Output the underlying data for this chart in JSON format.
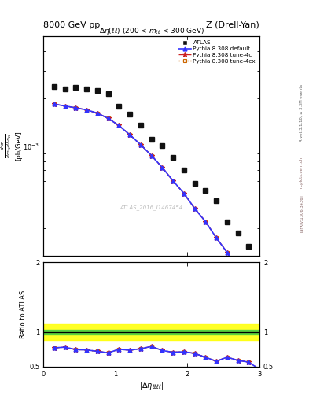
{
  "title_left": "8000 GeV pp",
  "title_right": "Z (Drell-Yan)",
  "subplot_title": "Δη(ℓℓ) (200 < m_{ℓℓ} < 300 GeV)",
  "watermark": "ATLAS_2016_I1467454",
  "rivet_text": "Rivet 3.1.10, ≥ 3.3M events",
  "arxiv_text": "[arXiv:1306.3436]",
  "mcplots_text": "mcplots.cern.ch",
  "atlas_x": [
    0.15,
    0.3,
    0.45,
    0.6,
    0.75,
    0.9,
    1.05,
    1.2,
    1.35,
    1.5,
    1.65,
    1.8,
    1.95,
    2.1,
    2.25,
    2.4,
    2.55,
    2.7,
    2.85
  ],
  "atlas_y": [
    0.0024,
    0.0023,
    0.00235,
    0.0023,
    0.00225,
    0.00215,
    0.0018,
    0.0016,
    0.00135,
    0.0011,
    0.001,
    0.00085,
    0.0007,
    0.00058,
    0.00052,
    0.00045,
    0.00033,
    0.00028,
    0.00023
  ],
  "pythia_x": [
    0.15,
    0.3,
    0.45,
    0.6,
    0.75,
    0.9,
    1.05,
    1.2,
    1.35,
    1.5,
    1.65,
    1.8,
    1.95,
    2.1,
    2.25,
    2.4,
    2.55,
    2.7,
    2.85,
    3.0
  ],
  "pythia_default_y": [
    0.00185,
    0.0018,
    0.00175,
    0.0017,
    0.00162,
    0.0015,
    0.00135,
    0.00118,
    0.00102,
    0.00087,
    0.00073,
    0.0006,
    0.0005,
    0.0004,
    0.00033,
    0.00026,
    0.00021,
    0.000165,
    0.00013,
    0.000105
  ],
  "pythia_4c_y": [
    0.00185,
    0.0018,
    0.00175,
    0.0017,
    0.00162,
    0.0015,
    0.00135,
    0.00118,
    0.00102,
    0.00087,
    0.00073,
    0.0006,
    0.0005,
    0.0004,
    0.00033,
    0.00026,
    0.00021,
    0.000165,
    0.00013,
    0.000105
  ],
  "pythia_4cx_y": [
    0.00185,
    0.0018,
    0.00175,
    0.0017,
    0.00162,
    0.0015,
    0.00135,
    0.00118,
    0.00102,
    0.00087,
    0.00073,
    0.0006,
    0.0005,
    0.0004,
    0.00033,
    0.00026,
    0.00021,
    0.000165,
    0.00013,
    0.000105
  ],
  "ratio_x": [
    0.15,
    0.3,
    0.45,
    0.6,
    0.75,
    0.9,
    1.05,
    1.2,
    1.35,
    1.5,
    1.65,
    1.8,
    1.95,
    2.1,
    2.25,
    2.4,
    2.55,
    2.7,
    2.85,
    3.0
  ],
  "ratio_default_y": [
    0.77,
    0.78,
    0.745,
    0.74,
    0.72,
    0.698,
    0.75,
    0.737,
    0.757,
    0.79,
    0.732,
    0.706,
    0.714,
    0.69,
    0.635,
    0.578,
    0.636,
    0.59,
    0.565,
    0.46
  ],
  "ratio_4c_y": [
    0.77,
    0.78,
    0.745,
    0.74,
    0.72,
    0.698,
    0.75,
    0.737,
    0.757,
    0.79,
    0.732,
    0.706,
    0.714,
    0.69,
    0.635,
    0.578,
    0.636,
    0.59,
    0.565,
    0.46
  ],
  "ratio_4cx_y": [
    0.77,
    0.78,
    0.745,
    0.74,
    0.72,
    0.698,
    0.75,
    0.737,
    0.757,
    0.79,
    0.732,
    0.706,
    0.714,
    0.69,
    0.635,
    0.578,
    0.636,
    0.59,
    0.565,
    0.46
  ],
  "color_default": "#3333ff",
  "color_4c": "#cc2222",
  "color_4cx": "#cc6600",
  "color_atlas": "#111111",
  "band_green_y1": 0.965,
  "band_green_y2": 1.035,
  "band_yellow_y1": 0.88,
  "band_yellow_y2": 1.12,
  "ylim_top_low": 0.0002,
  "ylim_top_high": 0.005,
  "ylim_bottom_low": 0.5,
  "ylim_bottom_high": 2.0,
  "xlim_low": 0.0,
  "xlim_high": 3.0
}
